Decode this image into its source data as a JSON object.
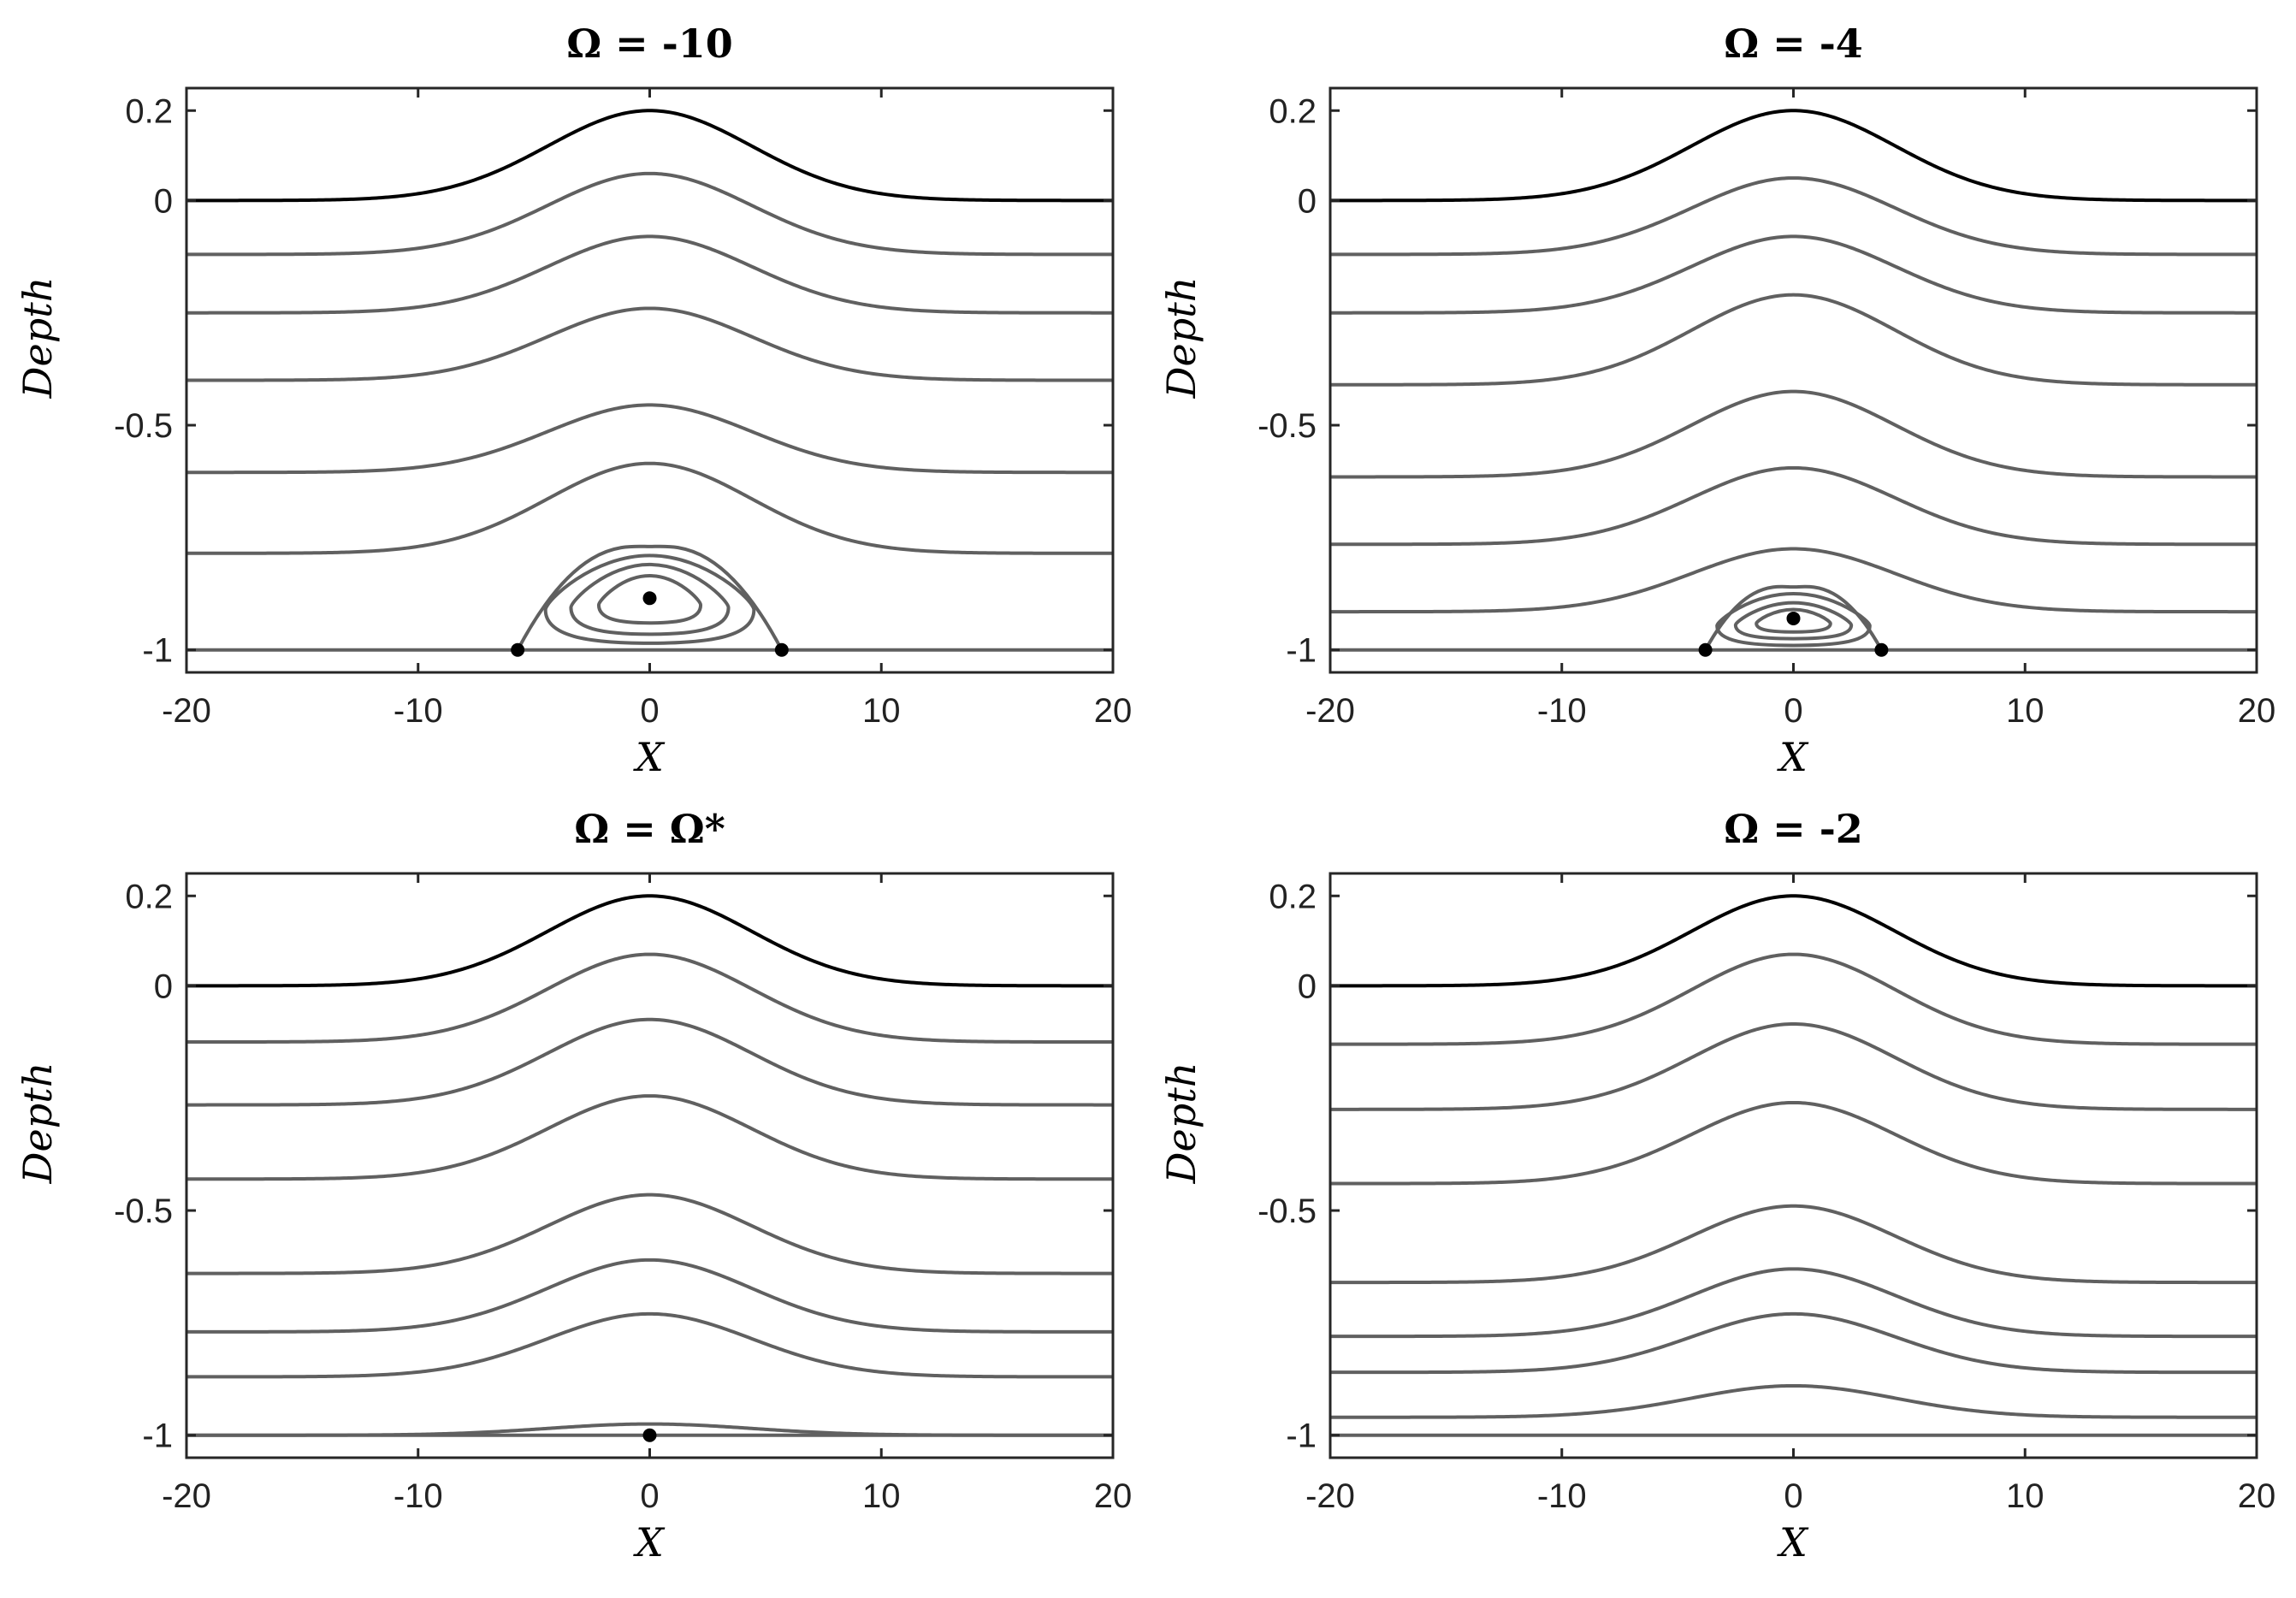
{
  "chart_data": [
    {
      "type": "line",
      "title": "Ω = -10",
      "xlabel": "X",
      "ylabel": "Depth",
      "xlim": [
        -20,
        20
      ],
      "ylim": [
        -1.05,
        0.25
      ],
      "xticks": [
        -20,
        -10,
        0,
        10,
        20
      ],
      "xtick_labels": [
        "-20",
        "-10",
        "0",
        "10",
        "20"
      ],
      "yticks": [
        0.2,
        0,
        -0.5,
        -1
      ],
      "ytick_labels": [
        "0.2",
        "0",
        "-0.5",
        "-1"
      ],
      "grid": false,
      "surface_color": "#000000",
      "streamline_color": "#606060",
      "streamlines": [
        {
          "base": 0,
          "amp": 0.2,
          "color": "surface"
        },
        {
          "base": -0.12,
          "amp": 0.18
        },
        {
          "base": -0.25,
          "amp": 0.17
        },
        {
          "base": -0.4,
          "amp": 0.16
        },
        {
          "base": -0.605,
          "amp": 0.15
        },
        {
          "base": -0.785,
          "amp": 0.2
        }
      ],
      "bottom_line": -1,
      "eddy": {
        "center": [
          0,
          -0.885
        ],
        "separatrix_top": -0.77,
        "loops": [
          {
            "top": -0.79,
            "bottom": -0.985,
            "halfwidth": 4.5
          },
          {
            "top": -0.81,
            "bottom": -0.965,
            "halfwidth": 3.4
          },
          {
            "top": -0.835,
            "bottom": -0.94,
            "halfwidth": 2.2
          }
        ]
      },
      "points": [
        {
          "x": 0,
          "y": -0.885
        },
        {
          "x": -5.7,
          "y": -1
        },
        {
          "x": 5.7,
          "y": -1
        }
      ]
    },
    {
      "type": "line",
      "title": "Ω = -4",
      "xlabel": "X",
      "ylabel": "Depth",
      "xlim": [
        -20,
        20
      ],
      "ylim": [
        -1.05,
        0.25
      ],
      "xticks": [
        -20,
        -10,
        0,
        10,
        20
      ],
      "xtick_labels": [
        "-20",
        "-10",
        "0",
        "10",
        "20"
      ],
      "yticks": [
        0.2,
        0,
        -0.5,
        -1
      ],
      "ytick_labels": [
        "0.2",
        "0",
        "-0.5",
        "-1"
      ],
      "grid": false,
      "surface_color": "#000000",
      "streamline_color": "#606060",
      "streamlines": [
        {
          "base": 0,
          "amp": 0.2,
          "color": "surface"
        },
        {
          "base": -0.12,
          "amp": 0.17
        },
        {
          "base": -0.25,
          "amp": 0.17
        },
        {
          "base": -0.41,
          "amp": 0.2
        },
        {
          "base": -0.615,
          "amp": 0.19
        },
        {
          "base": -0.765,
          "amp": 0.17
        },
        {
          "base": -0.915,
          "amp": 0.14
        }
      ],
      "bottom_line": -1,
      "eddy": {
        "center": [
          0,
          -0.93
        ],
        "separatrix_top": -0.86,
        "loops": [
          {
            "top": -0.875,
            "bottom": -0.99,
            "halfwidth": 3.3
          },
          {
            "top": -0.895,
            "bottom": -0.975,
            "halfwidth": 2.5
          },
          {
            "top": -0.91,
            "bottom": -0.96,
            "halfwidth": 1.6
          }
        ]
      },
      "points": [
        {
          "x": 0,
          "y": -0.93
        },
        {
          "x": -3.8,
          "y": -1
        },
        {
          "x": 3.8,
          "y": -1
        }
      ]
    },
    {
      "type": "line",
      "title": "Ω = Ω*",
      "xlabel": "X",
      "ylabel": "Depth",
      "xlim": [
        -20,
        20
      ],
      "ylim": [
        -1.05,
        0.25
      ],
      "xticks": [
        -20,
        -10,
        0,
        10,
        20
      ],
      "xtick_labels": [
        "-20",
        "-10",
        "0",
        "10",
        "20"
      ],
      "yticks": [
        0.2,
        0,
        -0.5,
        -1
      ],
      "ytick_labels": [
        "0.2",
        "0",
        "-0.5",
        "-1"
      ],
      "grid": false,
      "surface_color": "#000000",
      "streamline_color": "#606060",
      "streamlines": [
        {
          "base": 0,
          "amp": 0.2,
          "color": "surface"
        },
        {
          "base": -0.125,
          "amp": 0.195
        },
        {
          "base": -0.265,
          "amp": 0.19
        },
        {
          "base": -0.43,
          "amp": 0.185
        },
        {
          "base": -0.64,
          "amp": 0.175
        },
        {
          "base": -0.77,
          "amp": 0.16
        },
        {
          "base": -0.87,
          "amp": 0.14
        },
        {
          "base": -1,
          "amp": 0.025
        }
      ],
      "bottom_line": -1,
      "eddy": null,
      "points": [
        {
          "x": 0,
          "y": -1
        }
      ]
    },
    {
      "type": "line",
      "title": "Ω = -2",
      "xlabel": "X",
      "ylabel": "Depth",
      "xlim": [
        -20,
        20
      ],
      "ylim": [
        -1.05,
        0.25
      ],
      "xticks": [
        -20,
        -10,
        0,
        10,
        20
      ],
      "xtick_labels": [
        "-20",
        "-10",
        "0",
        "10",
        "20"
      ],
      "yticks": [
        0.2,
        0,
        -0.5,
        -1
      ],
      "ytick_labels": [
        "0.2",
        "0",
        "-0.5",
        "-1"
      ],
      "grid": false,
      "surface_color": "#000000",
      "streamline_color": "#606060",
      "streamlines": [
        {
          "base": 0,
          "amp": 0.2,
          "color": "surface"
        },
        {
          "base": -0.13,
          "amp": 0.2
        },
        {
          "base": -0.275,
          "amp": 0.19
        },
        {
          "base": -0.44,
          "amp": 0.18
        },
        {
          "base": -0.66,
          "amp": 0.17
        },
        {
          "base": -0.78,
          "amp": 0.15
        },
        {
          "base": -0.86,
          "amp": 0.13
        },
        {
          "base": -0.96,
          "amp": 0.07
        }
      ],
      "bottom_line": -1,
      "eddy": null,
      "points": []
    }
  ]
}
